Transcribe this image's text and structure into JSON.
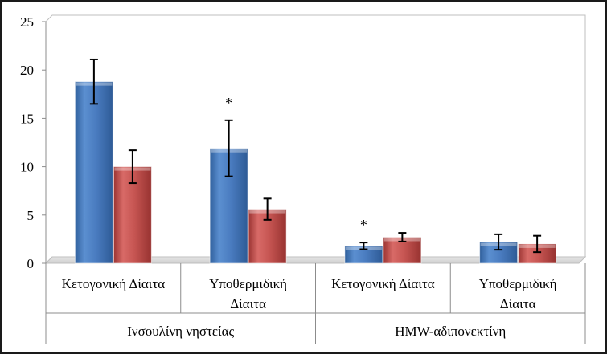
{
  "chart_data": {
    "type": "bar",
    "title": "",
    "xlabel": "",
    "ylabel": "",
    "ylim": [
      0,
      25
    ],
    "yticks": [
      "0",
      "5",
      "10",
      "15",
      "20",
      "25"
    ],
    "grid": false,
    "legend": "none",
    "groups": [
      {
        "label": "Ινσουλίνη νηστείας",
        "categories": [
          "Κετογονική Δίαιτα",
          "Υποθερμιδική Δίαιτα"
        ]
      },
      {
        "label": "HMW-αδιπονεκτίνη",
        "categories": [
          "Κετογονική Δίαιτα",
          "Υποθερμιδική Δίαιτα"
        ]
      }
    ],
    "category_lines": [
      [
        "Κετογονική Δίαιτα"
      ],
      [
        "Υποθερμιδική",
        "Δίαιτα"
      ],
      [
        "Κετογονική Δίαιτα"
      ],
      [
        "Υποθερμιδική",
        "Δίαιτα"
      ]
    ],
    "series": [
      {
        "color": "#4f81bd",
        "values": [
          18.8,
          11.9,
          1.8,
          2.2
        ],
        "errors": [
          2.3,
          2.9,
          0.35,
          0.8
        ]
      },
      {
        "color": "#c0504d",
        "values": [
          10.0,
          5.6,
          2.7,
          2.0
        ],
        "errors": [
          1.7,
          1.1,
          0.45,
          0.85
        ]
      }
    ],
    "annotations": [
      {
        "text": "*",
        "category_index": 1,
        "series_index": 0
      },
      {
        "text": "*",
        "category_index": 2,
        "series_index": 0
      }
    ]
  }
}
